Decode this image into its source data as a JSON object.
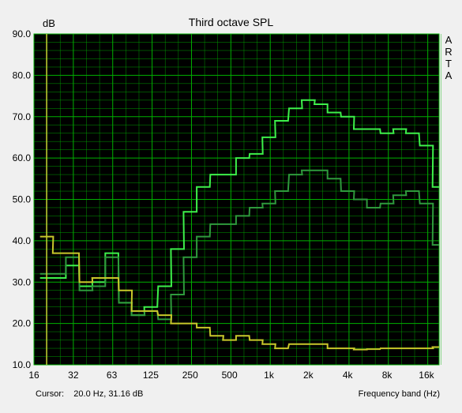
{
  "window": {
    "title": "Third octave SPL",
    "y_unit": "dB",
    "brand": [
      "A",
      "R",
      "T",
      "A"
    ],
    "cursor_label": "Cursor:",
    "cursor_value": "20.0 Hz, 31.16 dB",
    "x_axis_label": "Frequency band (Hz)"
  },
  "colors": {
    "plot_bg": "#000000",
    "grid": "#00b000",
    "bright_green": "#3df04a",
    "dark_green": "#2e9a3c",
    "yellow": "#c8c82a",
    "cursor": "#c8c832"
  },
  "chart_data": {
    "type": "line",
    "title": "Third octave SPL",
    "ylabel": "dB",
    "xlabel": "Frequency band (Hz)",
    "x_scale": "log2",
    "xlim": [
      16,
      20000
    ],
    "ylim": [
      10,
      90
    ],
    "yticks": [
      "90.0",
      "80.0",
      "70.0",
      "60.0",
      "50.0",
      "40.0",
      "30.0",
      "20.0",
      "10.0"
    ],
    "xticks": [
      {
        "f": 16,
        "label": "16"
      },
      {
        "f": 32,
        "label": "32"
      },
      {
        "f": 63,
        "label": "63"
      },
      {
        "f": 125,
        "label": "125"
      },
      {
        "f": 250,
        "label": "250"
      },
      {
        "f": 500,
        "label": "500"
      },
      {
        "f": 1000,
        "label": "1k"
      },
      {
        "f": 2000,
        "label": "2k"
      },
      {
        "f": 4000,
        "label": "4k"
      },
      {
        "f": 8000,
        "label": "8k"
      },
      {
        "f": 16000,
        "label": "16k"
      }
    ],
    "grid": true,
    "cursor_hz": 20,
    "bands": [
      20,
      25,
      31.5,
      40,
      50,
      63,
      80,
      100,
      125,
      160,
      200,
      250,
      315,
      400,
      500,
      630,
      800,
      1000,
      1250,
      1600,
      2000,
      2500,
      3150,
      4000,
      5000,
      6300,
      8000,
      10000,
      12500,
      16000,
      20000
    ],
    "series": [
      {
        "color_key": "bright_green",
        "values": [
          31,
          31,
          34,
          29,
          30,
          37,
          25,
          22,
          24,
          29,
          38,
          47,
          53,
          56,
          56,
          60,
          61,
          65,
          69,
          72,
          74,
          73,
          71,
          70,
          67,
          67,
          66,
          67,
          66,
          63,
          53
        ]
      },
      {
        "color_key": "dark_green",
        "values": [
          32,
          32,
          36,
          28,
          29,
          36,
          25,
          22,
          23,
          21,
          27,
          36,
          41,
          44,
          44,
          46,
          48,
          49,
          52,
          56,
          57,
          57,
          55,
          52,
          50,
          48,
          49,
          51,
          52,
          49,
          39
        ]
      },
      {
        "color_key": "yellow",
        "values": [
          41,
          37,
          37,
          30,
          31,
          31,
          28,
          23,
          23,
          22,
          20,
          20,
          19,
          17,
          16,
          17,
          16,
          15,
          14,
          15,
          15,
          15,
          14,
          14,
          13.7,
          13.8,
          14,
          14,
          14,
          14,
          14.3
        ]
      }
    ]
  }
}
